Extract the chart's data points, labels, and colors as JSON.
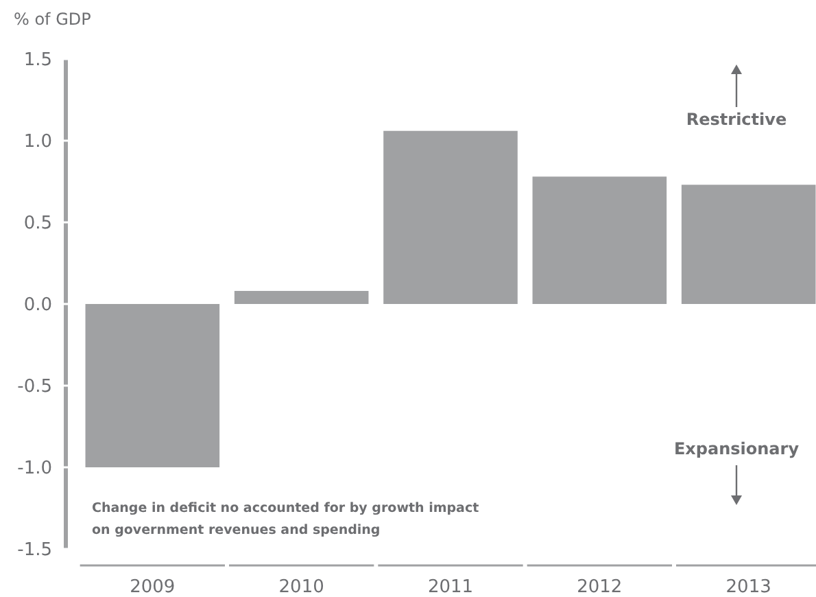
{
  "chart_data": {
    "type": "bar",
    "ylabel": "% of GDP",
    "categories": [
      "2009",
      "2010",
      "2011",
      "2012",
      "2013"
    ],
    "values": [
      -1.0,
      0.08,
      1.06,
      0.78,
      0.73
    ],
    "color": "#a0a1a3",
    "ylim": [
      -1.5,
      1.5
    ],
    "yticks": [
      {
        "value": 1.5,
        "label": "1.5"
      },
      {
        "value": 1,
        "label": "1.0"
      },
      {
        "value": 0.5,
        "label": "0.5"
      },
      {
        "value": 0,
        "label": "0.0"
      },
      {
        "value": -0.5,
        "label": "-0.5"
      },
      {
        "value": -1,
        "label": "-1.0"
      },
      {
        "value": -1.5,
        "label": "-1.5"
      }
    ],
    "grid": false,
    "annotations": [
      "Restrictive",
      "Expansionary",
      "Change in deficit no accounted for by growth impact\non government revenues and spending"
    ]
  }
}
